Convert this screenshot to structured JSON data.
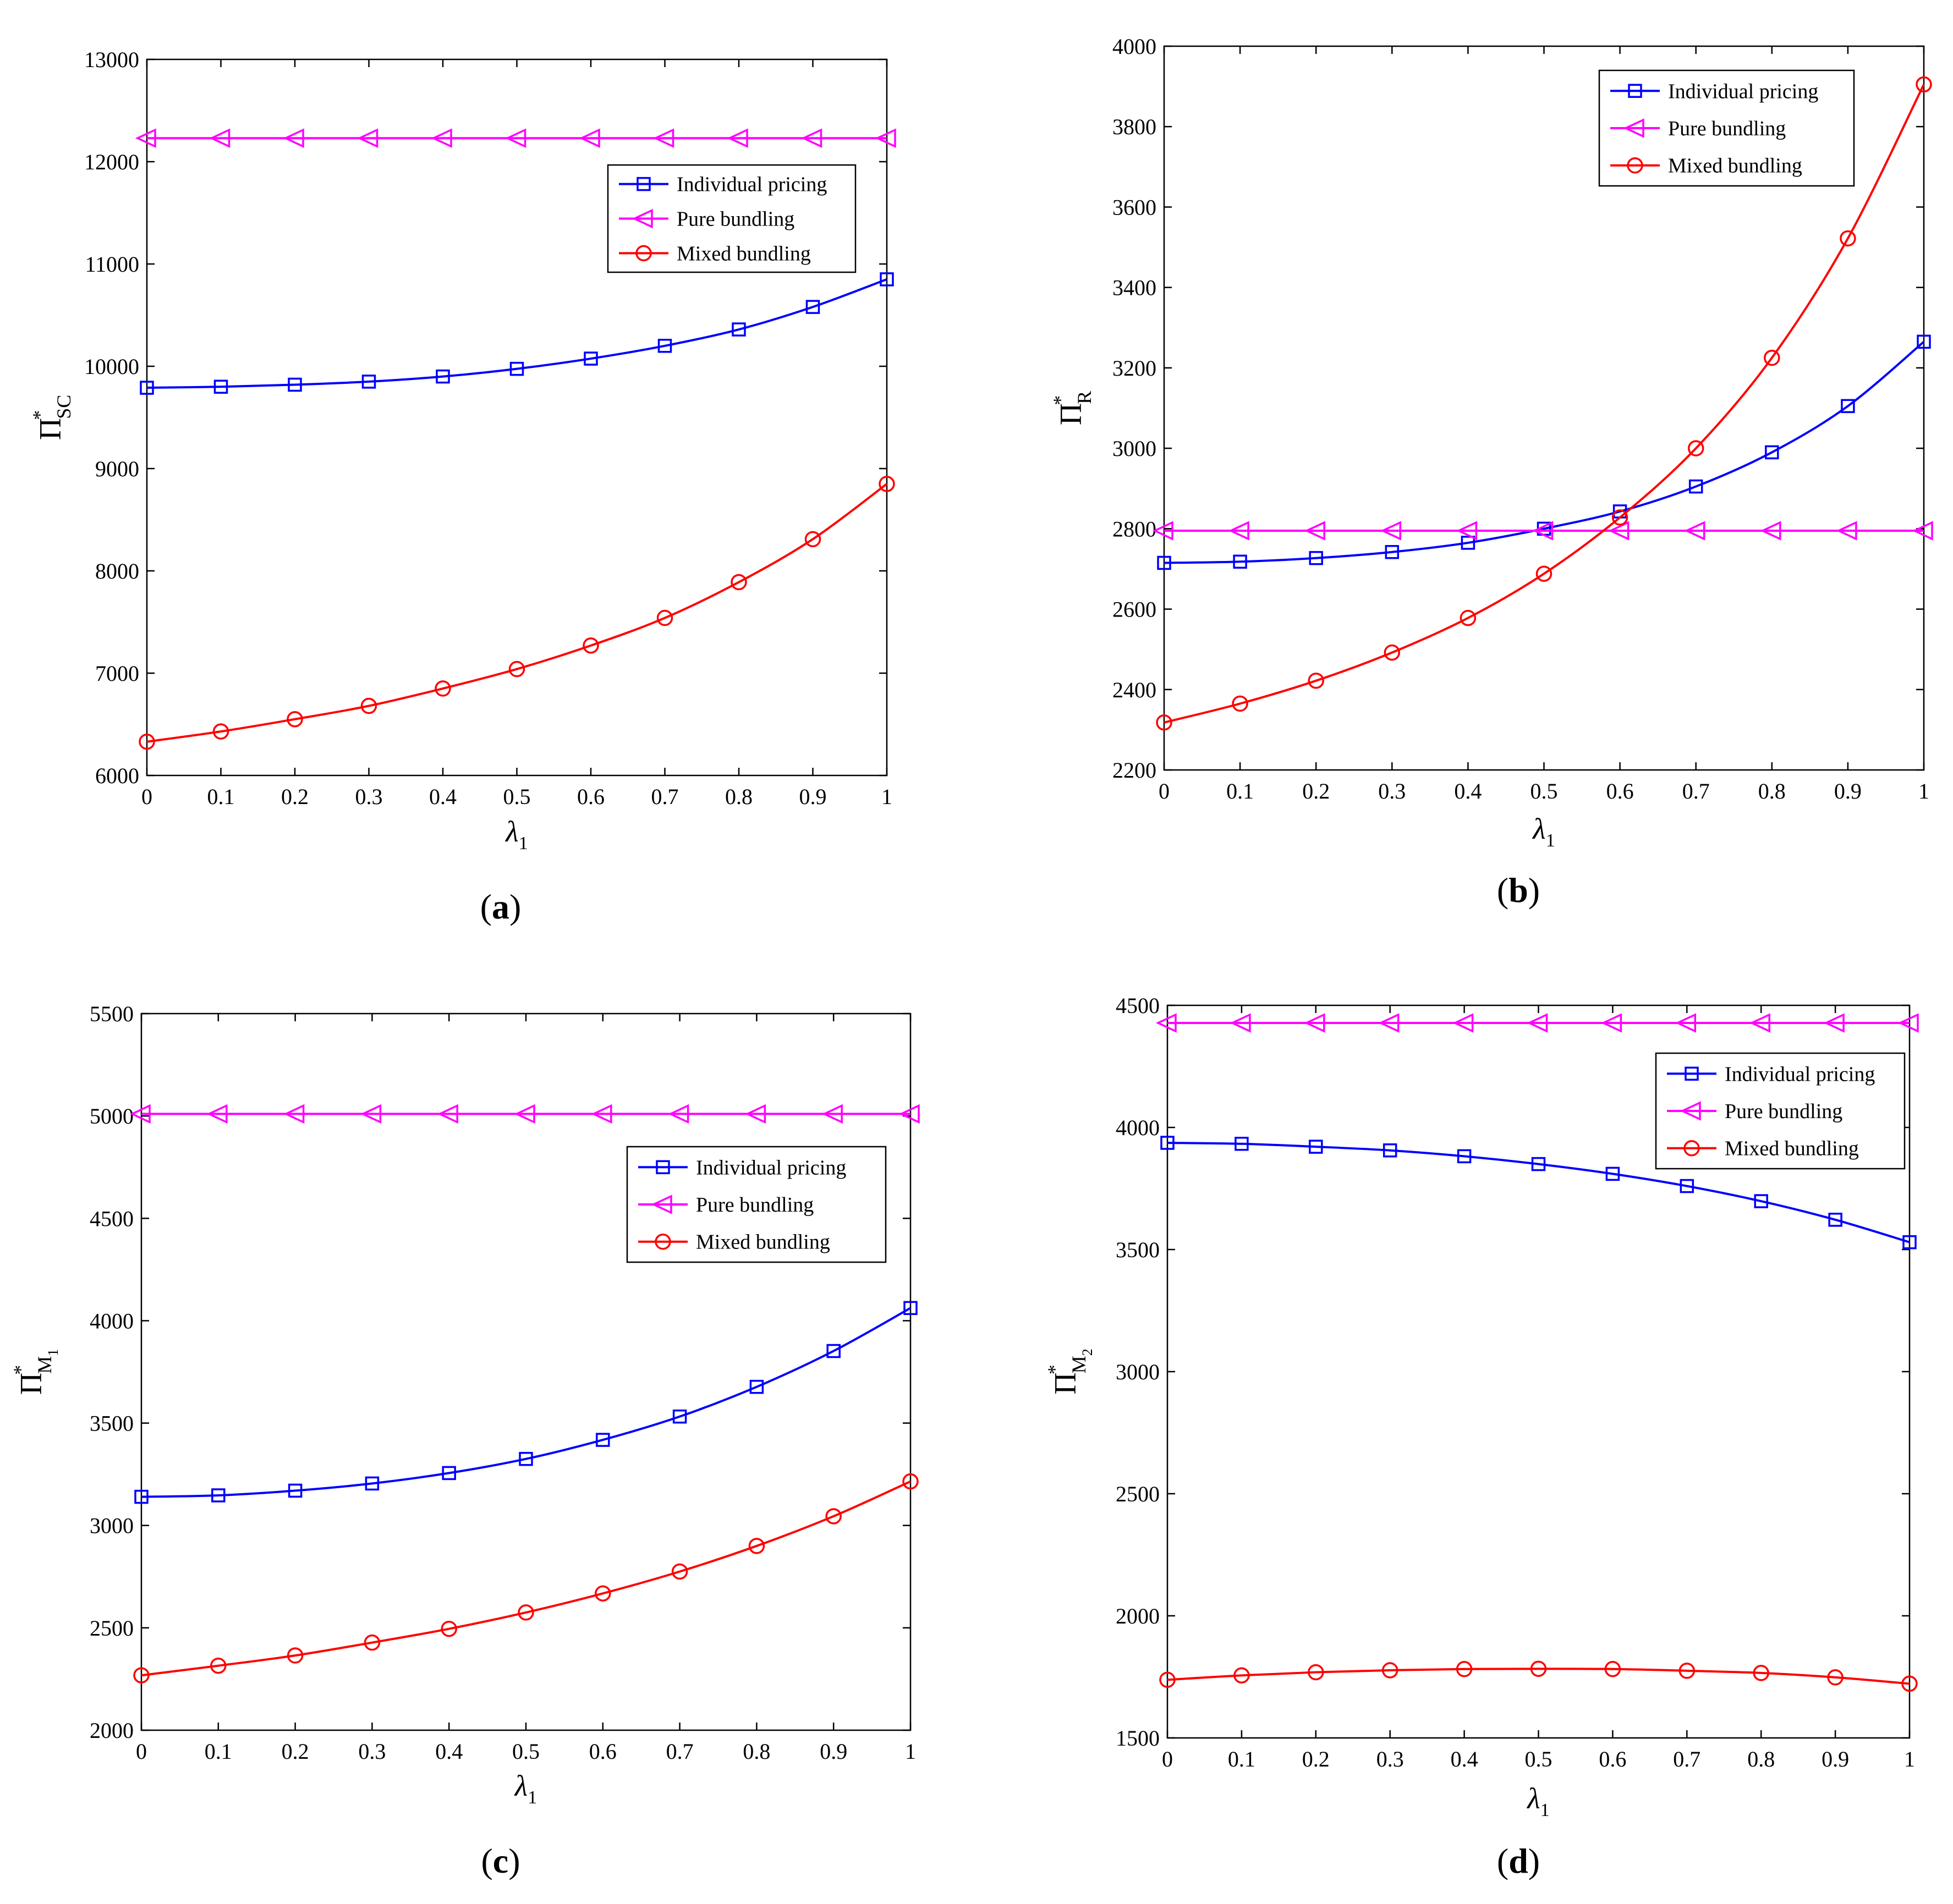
{
  "colors": {
    "individual": "#0000ff",
    "pure": "#ff00ff",
    "mixed": "#ff0000",
    "axis": "#000000"
  },
  "chart_data": [
    {
      "type": "line",
      "panel_label": "a",
      "xlabel": "λ",
      "xlabel_sub": "1",
      "ylabel_main": "Π",
      "ylabel_sup": "*",
      "ylabel_sub": "SC",
      "ylabel_subsub": "",
      "xlim": [
        0,
        1
      ],
      "ylim": [
        6000,
        13000
      ],
      "x_ticks": [
        0,
        0.1,
        0.2,
        0.3,
        0.4,
        0.5,
        0.6,
        0.7,
        0.8,
        0.9,
        1
      ],
      "x_tick_labels": [
        "0",
        "0.1",
        "0.2",
        "0.3",
        "0.4",
        "0.5",
        "0.6",
        "0.7",
        "0.8",
        "0.9",
        "1"
      ],
      "y_ticks": [
        6000,
        7000,
        8000,
        9000,
        10000,
        11000,
        12000,
        13000
      ],
      "y_tick_labels": [
        "6000",
        "7000",
        "8000",
        "9000",
        "10000",
        "11000",
        "12000",
        "13000"
      ],
      "legend_position": "upper-right",
      "x": [
        0,
        0.1,
        0.2,
        0.3,
        0.4,
        0.5,
        0.6,
        0.7,
        0.8,
        0.9,
        1
      ],
      "series": [
        {
          "name": "Individual pricing",
          "marker": "square",
          "color": "#0000ff",
          "values": [
            9790,
            9800,
            9820,
            9850,
            9900,
            9975,
            10075,
            10200,
            10360,
            10580,
            10850
          ]
        },
        {
          "name": "Pure bundling",
          "marker": "triangle-left",
          "color": "#ff00ff",
          "values": [
            12230,
            12230,
            12230,
            12230,
            12230,
            12230,
            12230,
            12230,
            12230,
            12230,
            12230
          ]
        },
        {
          "name": "Mixed bundling",
          "marker": "circle",
          "color": "#ff0000",
          "values": [
            6330,
            6430,
            6550,
            6680,
            6850,
            7040,
            7270,
            7540,
            7890,
            8310,
            8850
          ]
        }
      ]
    },
    {
      "type": "line",
      "panel_label": "b",
      "xlabel": "λ",
      "xlabel_sub": "1",
      "ylabel_main": "Π",
      "ylabel_sup": "*",
      "ylabel_sub": "R",
      "ylabel_subsub": "",
      "xlim": [
        0,
        1
      ],
      "ylim": [
        2200,
        4000
      ],
      "x_ticks": [
        0,
        0.1,
        0.2,
        0.3,
        0.4,
        0.5,
        0.6,
        0.7,
        0.8,
        0.9,
        1
      ],
      "x_tick_labels": [
        "0",
        "0.1",
        "0.2",
        "0.3",
        "0.4",
        "0.5",
        "0.6",
        "0.7",
        "0.8",
        "0.9",
        "1"
      ],
      "y_ticks": [
        2200,
        2400,
        2600,
        2800,
        3000,
        3200,
        3400,
        3600,
        3800,
        4000
      ],
      "y_tick_labels": [
        "2200",
        "2400",
        "2600",
        "2800",
        "3000",
        "3200",
        "3400",
        "3600",
        "3800",
        "4000"
      ],
      "legend_position": "upper-right",
      "x": [
        0,
        0.1,
        0.2,
        0.3,
        0.4,
        0.5,
        0.6,
        0.7,
        0.8,
        0.9,
        1
      ],
      "series": [
        {
          "name": "Individual pricing",
          "marker": "square",
          "color": "#0000ff",
          "values": [
            2715,
            2718,
            2727,
            2742,
            2765,
            2800,
            2843,
            2905,
            2990,
            3105,
            3265
          ]
        },
        {
          "name": "Pure bundling",
          "marker": "triangle-left",
          "color": "#ff00ff",
          "values": [
            2795,
            2795,
            2795,
            2795,
            2795,
            2795,
            2795,
            2795,
            2795,
            2795,
            2795
          ]
        },
        {
          "name": "Mixed bundling",
          "marker": "circle",
          "color": "#ff0000",
          "values": [
            2318,
            2365,
            2422,
            2492,
            2578,
            2688,
            2828,
            3000,
            3225,
            3522,
            3905
          ]
        }
      ]
    },
    {
      "type": "line",
      "panel_label": "c",
      "xlabel": "λ",
      "xlabel_sub": "1",
      "ylabel_main": "Π",
      "ylabel_sup": "*",
      "ylabel_sub": "M",
      "ylabel_subsub": "1",
      "xlim": [
        0,
        1
      ],
      "ylim": [
        2000,
        5500
      ],
      "x_ticks": [
        0,
        0.1,
        0.2,
        0.3,
        0.4,
        0.5,
        0.6,
        0.7,
        0.8,
        0.9,
        1
      ],
      "x_tick_labels": [
        "0",
        "0.1",
        "0.2",
        "0.3",
        "0.4",
        "0.5",
        "0.6",
        "0.7",
        "0.8",
        "0.9",
        "1"
      ],
      "y_ticks": [
        2000,
        2500,
        3000,
        3500,
        4000,
        4500,
        5000,
        5500
      ],
      "y_tick_labels": [
        "2000",
        "2500",
        "3000",
        "3500",
        "4000",
        "4500",
        "5000",
        "5500"
      ],
      "legend_position": "center-right",
      "x": [
        0,
        0.1,
        0.2,
        0.3,
        0.4,
        0.5,
        0.6,
        0.7,
        0.8,
        0.9,
        1
      ],
      "series": [
        {
          "name": "Individual pricing",
          "marker": "square",
          "color": "#0000ff",
          "values": [
            3140,
            3147,
            3170,
            3205,
            3256,
            3325,
            3418,
            3532,
            3677,
            3852,
            4062
          ]
        },
        {
          "name": "Pure bundling",
          "marker": "triangle-left",
          "color": "#ff00ff",
          "values": [
            5010,
            5010,
            5010,
            5010,
            5010,
            5010,
            5010,
            5010,
            5010,
            5010,
            5010
          ]
        },
        {
          "name": "Mixed bundling",
          "marker": "circle",
          "color": "#ff0000",
          "values": [
            2268,
            2315,
            2365,
            2428,
            2495,
            2575,
            2668,
            2775,
            2900,
            3045,
            3215
          ]
        }
      ]
    },
    {
      "type": "line",
      "panel_label": "d",
      "xlabel": "λ",
      "xlabel_sub": "1",
      "ylabel_main": "Π",
      "ylabel_sup": "*",
      "ylabel_sub": "M",
      "ylabel_subsub": "2",
      "xlim": [
        0,
        1
      ],
      "ylim": [
        1500,
        4500
      ],
      "x_ticks": [
        0,
        0.1,
        0.2,
        0.3,
        0.4,
        0.5,
        0.6,
        0.7,
        0.8,
        0.9,
        1
      ],
      "x_tick_labels": [
        "0",
        "0.1",
        "0.2",
        "0.3",
        "0.4",
        "0.5",
        "0.6",
        "0.7",
        "0.8",
        "0.9",
        "1"
      ],
      "y_ticks": [
        1500,
        2000,
        2500,
        3000,
        3500,
        4000,
        4500
      ],
      "y_tick_labels": [
        "1500",
        "2000",
        "2500",
        "3000",
        "3500",
        "4000",
        "4500"
      ],
      "legend_position": "upper-right",
      "x": [
        0,
        0.1,
        0.2,
        0.3,
        0.4,
        0.5,
        0.6,
        0.7,
        0.8,
        0.9,
        1
      ],
      "series": [
        {
          "name": "Individual pricing",
          "marker": "square",
          "color": "#0000ff",
          "values": [
            3937,
            3933,
            3921,
            3906,
            3882,
            3850,
            3810,
            3760,
            3698,
            3622,
            3530
          ]
        },
        {
          "name": "Pure bundling",
          "marker": "triangle-left",
          "color": "#ff00ff",
          "values": [
            4428,
            4428,
            4428,
            4428,
            4428,
            4428,
            4428,
            4428,
            4428,
            4428,
            4428
          ]
        },
        {
          "name": "Mixed bundling",
          "marker": "circle",
          "color": "#ff0000",
          "values": [
            1738,
            1756,
            1769,
            1777,
            1782,
            1783,
            1782,
            1775,
            1766,
            1748,
            1722
          ]
        }
      ]
    }
  ]
}
